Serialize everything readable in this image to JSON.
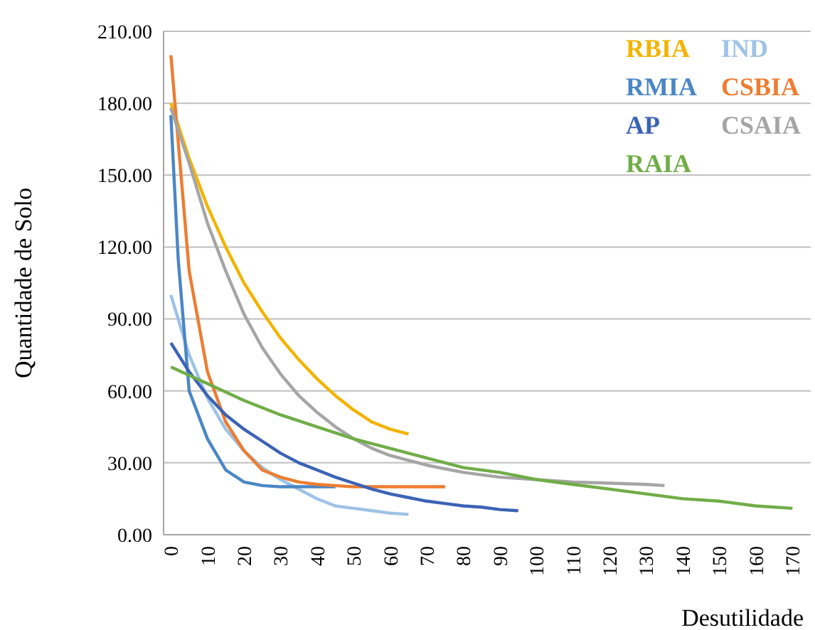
{
  "chart_data": {
    "type": "line",
    "xlabel": "Desutilidade",
    "ylabel": "Quantidade de Solo",
    "xlim": [
      -2,
      175
    ],
    "ylim": [
      0,
      210
    ],
    "xticks": [
      0,
      10,
      20,
      30,
      40,
      50,
      60,
      70,
      80,
      90,
      100,
      110,
      120,
      130,
      140,
      150,
      160,
      170
    ],
    "yticks": [
      {
        "value": 0,
        "label": "0.00"
      },
      {
        "value": 30,
        "label": "30.00"
      },
      {
        "value": 60,
        "label": "60.00"
      },
      {
        "value": 90,
        "label": "90.00"
      },
      {
        "value": 120,
        "label": "120.00"
      },
      {
        "value": 150,
        "label": "150.00"
      },
      {
        "value": 180,
        "label": "180.00"
      },
      {
        "value": 210,
        "label": "210.00"
      }
    ],
    "grid": "y",
    "legend": "top right",
    "marker": "none",
    "line_style": "solid",
    "series": [
      {
        "name": "RBIA",
        "color": "#f2b400",
        "x": [
          0,
          5,
          10,
          15,
          20,
          25,
          30,
          35,
          40,
          45,
          50,
          55,
          60,
          65
        ],
        "values": [
          180,
          157,
          137,
          120,
          105,
          93,
          82,
          73,
          65,
          58,
          52,
          47,
          44,
          42
        ]
      },
      {
        "name": "IND",
        "color": "#9dc3e6",
        "x": [
          0,
          5,
          10,
          15,
          20,
          25,
          30,
          35,
          40,
          45,
          50,
          55,
          60,
          65
        ],
        "values": [
          100,
          75,
          57,
          44,
          35,
          28,
          23,
          19,
          15,
          12,
          11,
          10,
          9,
          8.5
        ]
      },
      {
        "name": "RMIA",
        "color": "#4a86c5",
        "x": [
          0,
          2,
          5,
          10,
          15,
          20,
          25,
          30,
          45
        ],
        "values": [
          175,
          115,
          60,
          40,
          27,
          22,
          20.5,
          20,
          20
        ]
      },
      {
        "name": "CSBIA",
        "color": "#ed7d31",
        "x": [
          0,
          5,
          10,
          15,
          20,
          25,
          30,
          35,
          40,
          50,
          60,
          75
        ],
        "values": [
          200,
          110,
          68,
          47,
          35,
          27,
          24,
          22,
          21,
          20,
          20,
          20
        ]
      },
      {
        "name": "AP",
        "color": "#3b63b5",
        "x": [
          0,
          5,
          10,
          15,
          20,
          25,
          30,
          35,
          40,
          45,
          50,
          55,
          60,
          65,
          70,
          75,
          80,
          85,
          90,
          95
        ],
        "values": [
          80,
          68,
          58,
          50,
          44,
          39,
          34,
          30,
          27,
          24,
          21.5,
          19,
          17,
          15.5,
          14,
          13,
          12,
          11.5,
          10.5,
          10
        ]
      },
      {
        "name": "CSAIA",
        "color": "#a5a5a5",
        "x": [
          0,
          5,
          10,
          15,
          20,
          25,
          30,
          35,
          40,
          45,
          50,
          55,
          60,
          65,
          70,
          80,
          90,
          100,
          110,
          120,
          130,
          135
        ],
        "values": [
          178,
          155,
          130,
          110,
          92,
          78,
          67,
          58,
          51,
          45,
          40,
          36,
          33,
          31,
          29,
          26,
          24,
          23,
          22,
          21.5,
          21,
          20.5
        ]
      },
      {
        "name": "RAIA",
        "color": "#70ad47",
        "x": [
          0,
          10,
          20,
          30,
          40,
          50,
          60,
          70,
          80,
          90,
          100,
          110,
          120,
          130,
          140,
          150,
          160,
          170
        ],
        "values": [
          70,
          63,
          56,
          50,
          45,
          40,
          36,
          32,
          28,
          26,
          23,
          21,
          19,
          17,
          15,
          14,
          12,
          11
        ]
      }
    ]
  }
}
